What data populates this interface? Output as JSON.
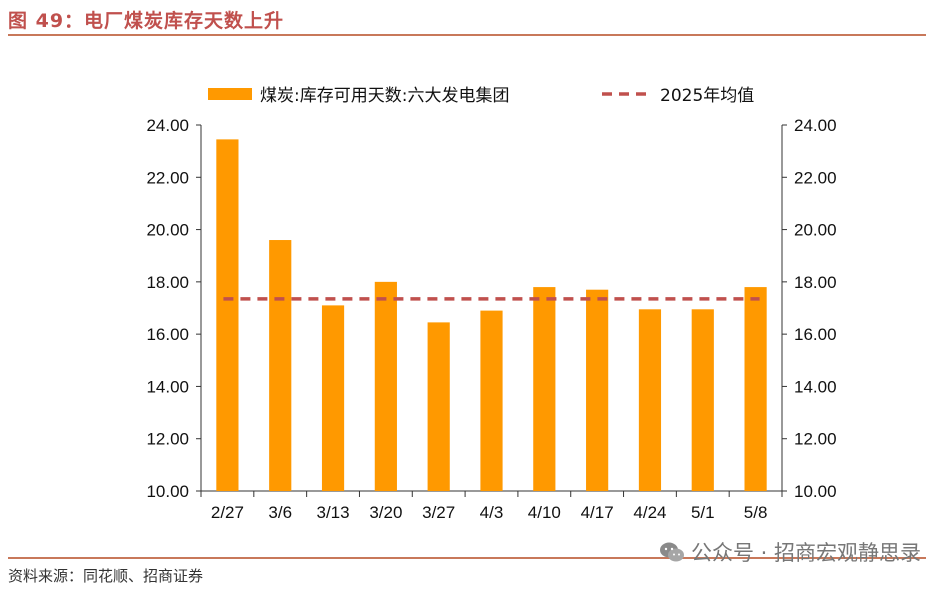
{
  "figure": {
    "title": "图 49：电厂煤炭库存天数上升",
    "source": "资料来源：同花顺、招商证券",
    "watermark": "公众号 · 招商宏观静思录"
  },
  "colors": {
    "bar": "#ff9900",
    "average_line": "#c0504d",
    "title": "#c0504d",
    "axis": "#333333"
  },
  "chart_data": {
    "type": "bar",
    "categories": [
      "2/27",
      "3/6",
      "3/13",
      "3/20",
      "3/27",
      "4/3",
      "4/10",
      "4/17",
      "4/24",
      "5/1",
      "5/8"
    ],
    "series": [
      {
        "name": "煤炭:库存可用天数:六大发电集团",
        "type": "bar",
        "values": [
          23.45,
          19.6,
          17.1,
          18.0,
          16.45,
          16.9,
          17.8,
          17.7,
          16.95,
          16.95,
          17.8
        ]
      },
      {
        "name": "2025年均值",
        "type": "line",
        "style": "dashed",
        "value": 17.35
      }
    ],
    "ylim": [
      10,
      24
    ],
    "yticks": [
      "10.00",
      "12.00",
      "14.00",
      "16.00",
      "18.00",
      "20.00",
      "22.00",
      "24.00"
    ],
    "secondary_axis": true,
    "legend_position": "top",
    "grid": false
  }
}
